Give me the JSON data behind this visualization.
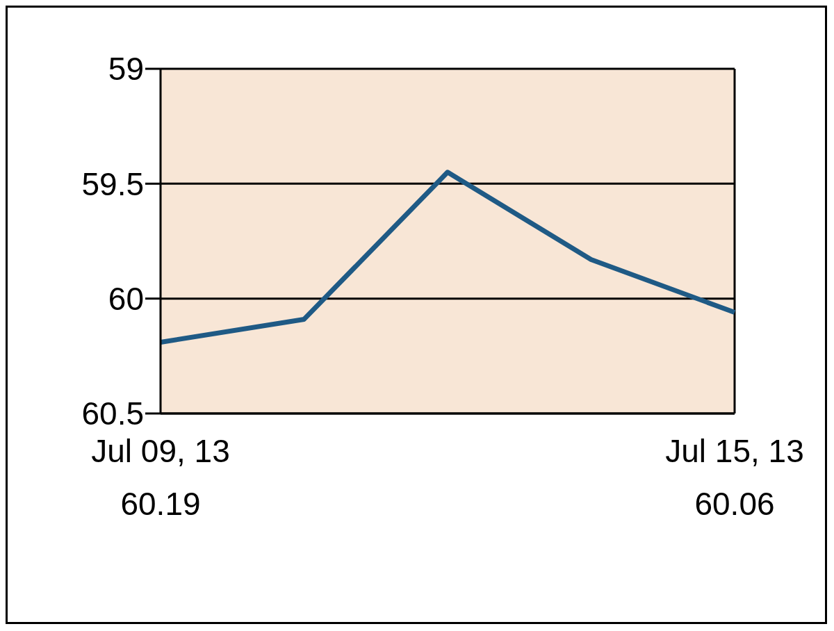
{
  "chart_data": {
    "type": "line",
    "categories": [
      "Jul 09, 13",
      null,
      null,
      null,
      "Jul 15, 13"
    ],
    "series": [
      {
        "color": "#1f5a85",
        "values": [
          60.19,
          60.09,
          59.45,
          59.83,
          60.06
        ]
      }
    ],
    "value_labels": [
      "60.19",
      null,
      null,
      null,
      "60.06"
    ],
    "ylim": [
      60.5,
      59
    ],
    "yticks": [
      59,
      59.5,
      60,
      60.5
    ],
    "grid": "y",
    "legend": false,
    "marker": "none",
    "line_style": "solid"
  }
}
